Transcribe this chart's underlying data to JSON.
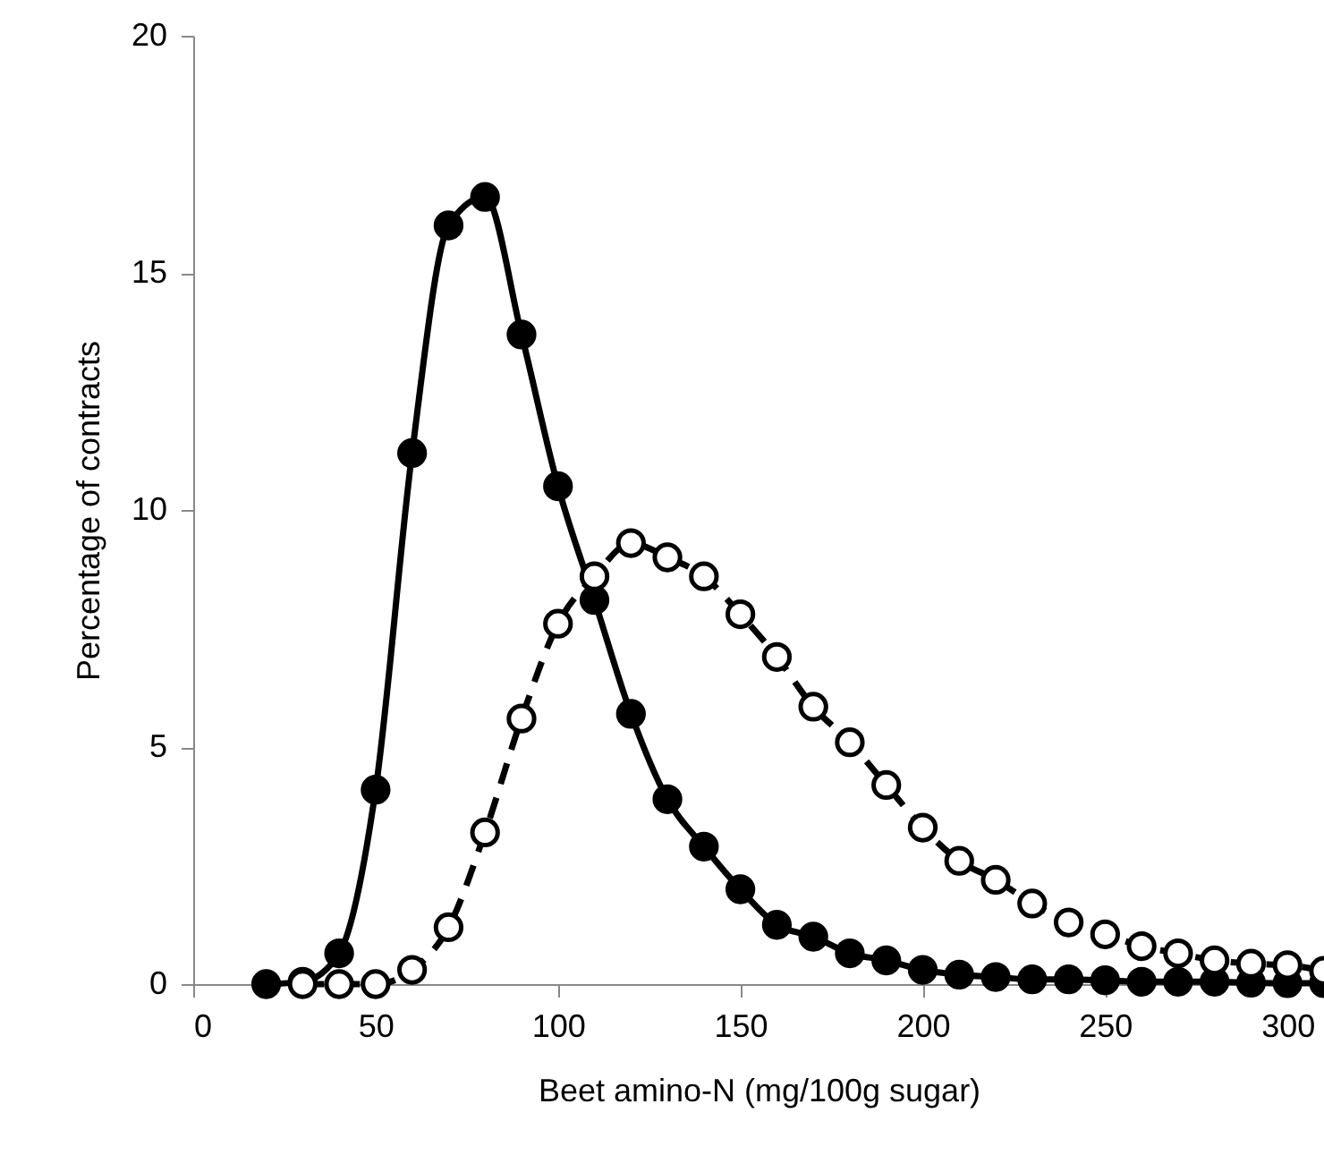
{
  "chart_data": {
    "type": "line",
    "xlabel": "Beet amino-N (mg/100g sugar)",
    "ylabel": "Percentage of contracts",
    "xlim": [
      0,
      310
    ],
    "xticks": [
      0,
      50,
      100,
      150,
      200,
      250,
      300
    ],
    "ylim": [
      0,
      20
    ],
    "yticks": [
      0,
      5,
      10,
      15,
      20
    ],
    "grid": false,
    "marker": "circle",
    "series": [
      {
        "color": "#000000",
        "line_style": "solid",
        "x": [
          20,
          30,
          40,
          50,
          60,
          70,
          80,
          90,
          100,
          110,
          120,
          130,
          140,
          150,
          160,
          170,
          180,
          190,
          200,
          210,
          220,
          230,
          240,
          250,
          260,
          270,
          280,
          290,
          300,
          310
        ],
        "values": [
          0,
          0.05,
          0.65,
          4.1,
          11.2,
          16.0,
          16.6,
          13.7,
          10.5,
          8.1,
          5.7,
          3.9,
          2.9,
          2.0,
          1.25,
          1.0,
          0.65,
          0.5,
          0.3,
          0.2,
          0.15,
          0.1,
          0.1,
          0.08,
          0.05,
          0.05,
          0.05,
          0.03,
          0.02,
          0.02
        ]
      },
      {
        "color": "#000000",
        "colors": [
          "#ffffff",
          "#ffffff",
          "#ffffff",
          "#ffffff",
          "#ffffff",
          "#ffffff",
          "#ffffff",
          "#ffffff",
          "#ffffff",
          "#ffffff",
          "#ffffff",
          "#ffffff",
          "#ffffff",
          "#ffffff",
          "#ffffff",
          "#ffffff",
          "#ffffff",
          "#ffffff",
          "#ffffff",
          "#ffffff",
          "#ffffff",
          "#ffffff",
          "#ffffff",
          "#ffffff",
          "#ffffff",
          "#ffffff",
          "#ffffff",
          "#ffffff",
          "#ffffff"
        ],
        "line_style": "dashed",
        "x": [
          30,
          40,
          50,
          60,
          70,
          80,
          90,
          100,
          110,
          120,
          130,
          140,
          150,
          160,
          170,
          180,
          190,
          200,
          210,
          220,
          230,
          240,
          250,
          260,
          270,
          280,
          290,
          300,
          310
        ],
        "values": [
          0,
          0,
          0,
          0.3,
          1.2,
          3.2,
          5.6,
          7.6,
          8.6,
          9.3,
          9.0,
          8.6,
          7.8,
          6.9,
          5.85,
          5.1,
          4.2,
          3.3,
          2.6,
          2.2,
          1.7,
          1.3,
          1.05,
          0.8,
          0.65,
          0.5,
          0.43,
          0.4,
          0.28
        ]
      }
    ]
  }
}
